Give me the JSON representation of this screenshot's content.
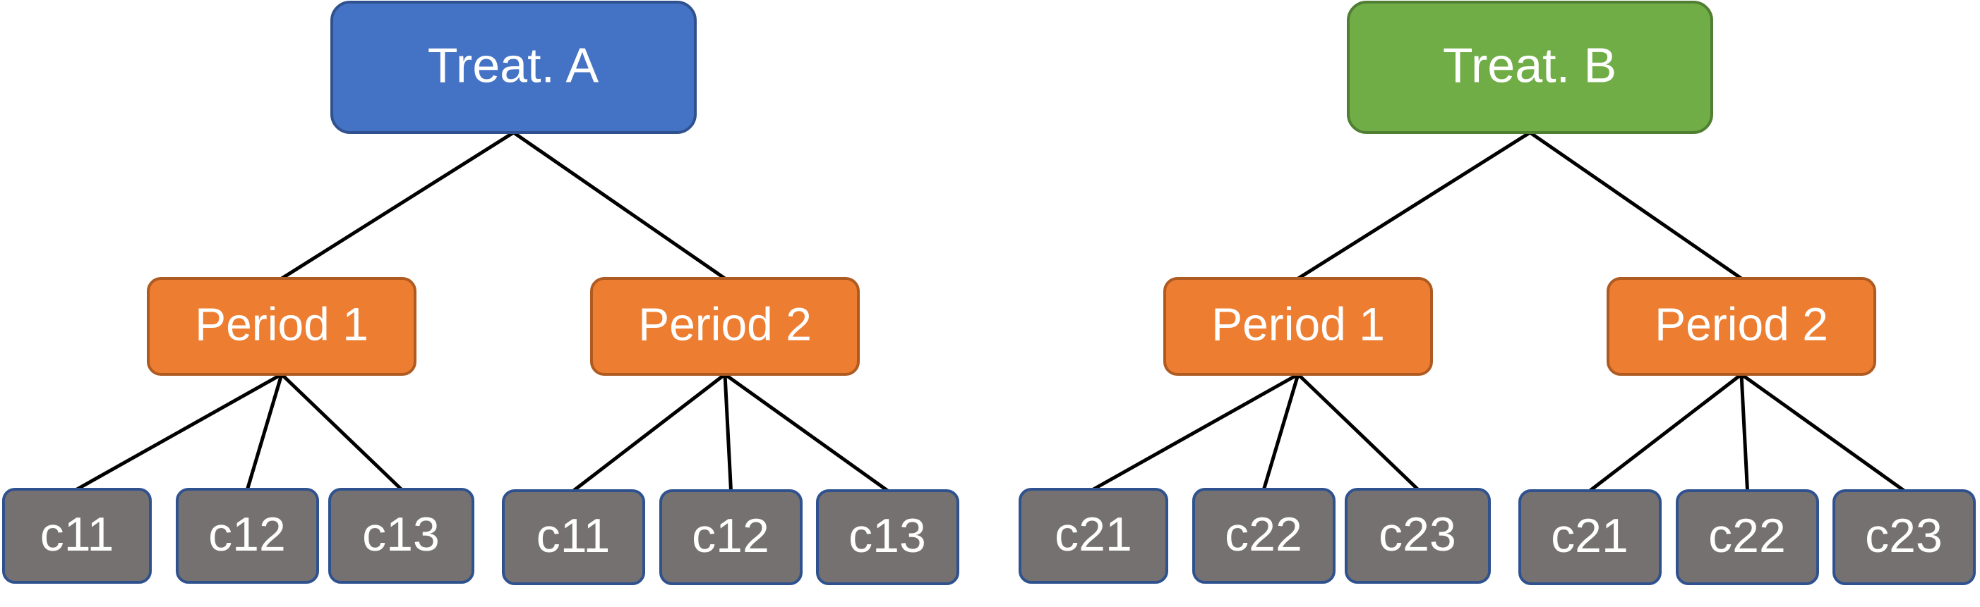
{
  "colors": {
    "treat_a": "#4472C4",
    "treat_a_border": "#2F528F",
    "treat_b": "#70AD47",
    "treat_b_border": "#507E32",
    "period": "#ED7D31",
    "period_border": "#AE5A21",
    "cell": "#767171",
    "cell_border": "#2F528F",
    "line": "#000000",
    "text": "#FFFFFF"
  },
  "trees": [
    {
      "label": "Treat. A",
      "color_key": "treat_a",
      "periods": [
        {
          "label": "Period 1",
          "cells": [
            "c11",
            "c12",
            "c13"
          ]
        },
        {
          "label": "Period 2",
          "cells": [
            "c11",
            "c12",
            "c13"
          ]
        }
      ]
    },
    {
      "label": "Treat. B",
      "color_key": "treat_b",
      "periods": [
        {
          "label": "Period 1",
          "cells": [
            "c21",
            "c22",
            "c23"
          ]
        },
        {
          "label": "Period 2",
          "cells": [
            "c21",
            "c22",
            "c23"
          ]
        }
      ]
    }
  ]
}
